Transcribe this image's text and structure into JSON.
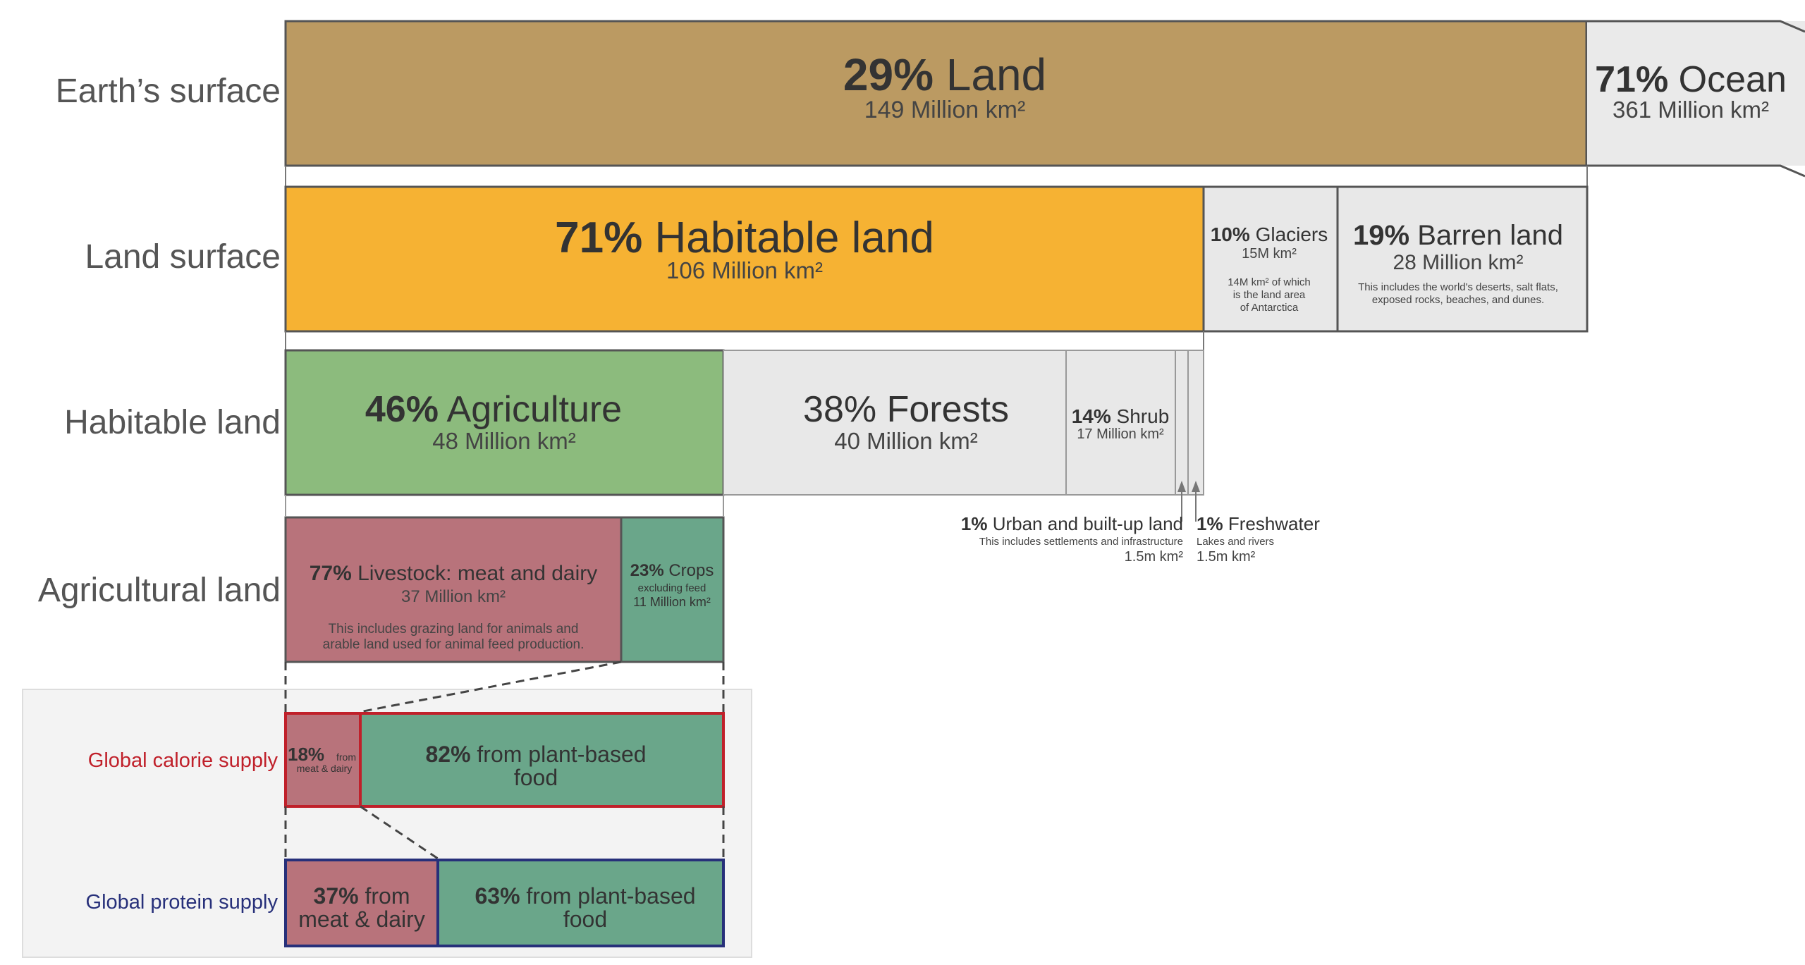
{
  "chart_data": {
    "type": "bar",
    "rows": [
      {
        "label": "Earth’s surface",
        "segments": [
          {
            "pct_text": "29%",
            "name": "Land",
            "sub": "149 Million km²",
            "value": 149,
            "share": 29,
            "color": "#bb9a62"
          },
          {
            "pct_text": "71%",
            "name": "Ocean",
            "sub": "361 Million km²",
            "value": 361,
            "share": 71,
            "color": "#eaeaea"
          }
        ]
      },
      {
        "label": "Land surface",
        "segments": [
          {
            "pct_text": "71%",
            "name": "Habitable land",
            "sub": "106 Million km²",
            "value": 106,
            "share": 71,
            "color": "#f6b233"
          },
          {
            "pct_text": "10%",
            "name": "Glaciers",
            "sub": "15M km²",
            "note": [
              "14M km² of which",
              "is the land area",
              "of Antarctica"
            ],
            "value": 15,
            "share": 10,
            "color": "#e8e8e8"
          },
          {
            "pct_text": "19%",
            "name": "Barren land",
            "sub": "28 Million km²",
            "note": [
              "This includes the world's deserts, salt flats,",
              "exposed rocks, beaches, and dunes."
            ],
            "value": 28,
            "share": 19,
            "color": "#e8e8e8"
          }
        ]
      },
      {
        "label": "Habitable land",
        "segments": [
          {
            "pct_text": "46%",
            "name": "Agriculture",
            "sub": "48 Million km²",
            "value": 48,
            "share": 46,
            "color": "#8cbb7d"
          },
          {
            "pct_text": "38%",
            "name": "Forests",
            "sub": "40 Million km²",
            "value": 40,
            "share": 38,
            "color": "#e8e8e8"
          },
          {
            "pct_text": "14%",
            "name": "Shrub",
            "sub": "17 Million km²",
            "value": 17,
            "share": 14,
            "color": "#e8e8e8"
          },
          {
            "pct_text": "1%",
            "name": "Urban and built-up land",
            "sub": "1.5m km²",
            "note": [
              "This includes settlements and infrastructure"
            ],
            "value": 1.5,
            "share": 1,
            "color": "#e8e8e8"
          },
          {
            "pct_text": "1%",
            "name": "Freshwater",
            "sub": "1.5m km²",
            "note": [
              "Lakes and rivers"
            ],
            "value": 1.5,
            "share": 1,
            "color": "#e8e8e8"
          }
        ]
      },
      {
        "label": "Agricultural land",
        "segments": [
          {
            "pct_text": "77%",
            "name": "Livestock: meat and dairy",
            "sub": "37 Million km²",
            "note": [
              "This includes grazing land for animals and",
              "arable land used for animal feed production."
            ],
            "value": 37,
            "share": 77,
            "color": "#b8737b"
          },
          {
            "pct_text": "23%",
            "name": "Crops",
            "sub_small": "excluding feed",
            "sub": "11 Million km²",
            "value": 11,
            "share": 23,
            "color": "#6aa68a"
          }
        ]
      }
    ],
    "supply": [
      {
        "label": "Global calorie supply",
        "color": "#c0202a",
        "segments": [
          {
            "pct_text": "18%",
            "text": "from meat & dairy",
            "text_lines": [
              "from",
              "meat & dairy"
            ],
            "share": 18,
            "color": "#b8737b"
          },
          {
            "pct_text": "82%",
            "text": "from plant-based food",
            "text_lines": [
              "from plant-based",
              "food"
            ],
            "share": 82,
            "color": "#6aa68a"
          }
        ]
      },
      {
        "label": "Global protein supply",
        "color": "#27307a",
        "segments": [
          {
            "pct_text": "37%",
            "text": "from meat & dairy",
            "text_lines": [
              "from",
              "meat & dairy"
            ],
            "share": 37,
            "color": "#b8737b"
          },
          {
            "pct_text": "63%",
            "text": "from plant-based food",
            "text_lines": [
              "from plant-based",
              "food"
            ],
            "share": 63,
            "color": "#6aa68a"
          }
        ]
      }
    ]
  }
}
